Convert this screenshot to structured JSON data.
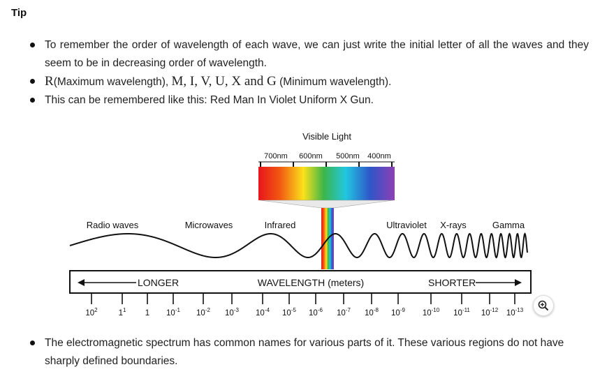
{
  "heading": "Tip",
  "tips": [
    "To remember the order of wavelength of each wave, we can just write the initial letter of all the waves and they seem to be in decreasing order of wavelength.",
    {
      "r": "R",
      "r_note": "(Maximum wavelength), ",
      "letters": "M, I, V, U, X and G",
      "g_note": " (Minimum wavelength)."
    },
    "This can be remembered like this: Red Man In Violet Uniform X Gun."
  ],
  "figure": {
    "visible_light": "Visible Light",
    "nm_labels": [
      "700nm",
      "600nm",
      "500nm",
      "400nm"
    ],
    "regions": [
      "Radio waves",
      "Microwaves",
      "Infrared",
      "Ultraviolet",
      "X-rays",
      "Gamma"
    ],
    "bar": {
      "left": "LONGER",
      "center": "WAVELENGTH (meters)",
      "right": "SHORTER"
    },
    "ticks": [
      {
        "base": "10",
        "exp": "2"
      },
      {
        "base": "1",
        "exp": "1"
      },
      {
        "base": "1",
        "exp": ""
      },
      {
        "base": "10",
        "exp": "-1"
      },
      {
        "base": "10",
        "exp": "-2"
      },
      {
        "base": "10",
        "exp": "-3"
      },
      {
        "base": "10",
        "exp": "-4"
      },
      {
        "base": "10",
        "exp": "-5"
      },
      {
        "base": "10",
        "exp": "-6"
      },
      {
        "base": "10",
        "exp": "-7"
      },
      {
        "base": "10",
        "exp": "-8"
      },
      {
        "base": "10",
        "exp": "-9"
      },
      {
        "base": "10",
        "exp": "-10"
      },
      {
        "base": "10",
        "exp": "-11"
      },
      {
        "base": "10",
        "exp": "-12"
      },
      {
        "base": "10",
        "exp": "-13"
      }
    ],
    "spectrum_colors": [
      "#e8141b",
      "#f25a12",
      "#fbe21b",
      "#3cb54a",
      "#21c7e0",
      "#2f56c9",
      "#8e3fb5"
    ]
  },
  "zoom_icon": "zoom-in-icon",
  "bottom_tip": "The electromagnetic spectrum has common names for various parts of it. These various regions do not have sharply defined boundaries."
}
